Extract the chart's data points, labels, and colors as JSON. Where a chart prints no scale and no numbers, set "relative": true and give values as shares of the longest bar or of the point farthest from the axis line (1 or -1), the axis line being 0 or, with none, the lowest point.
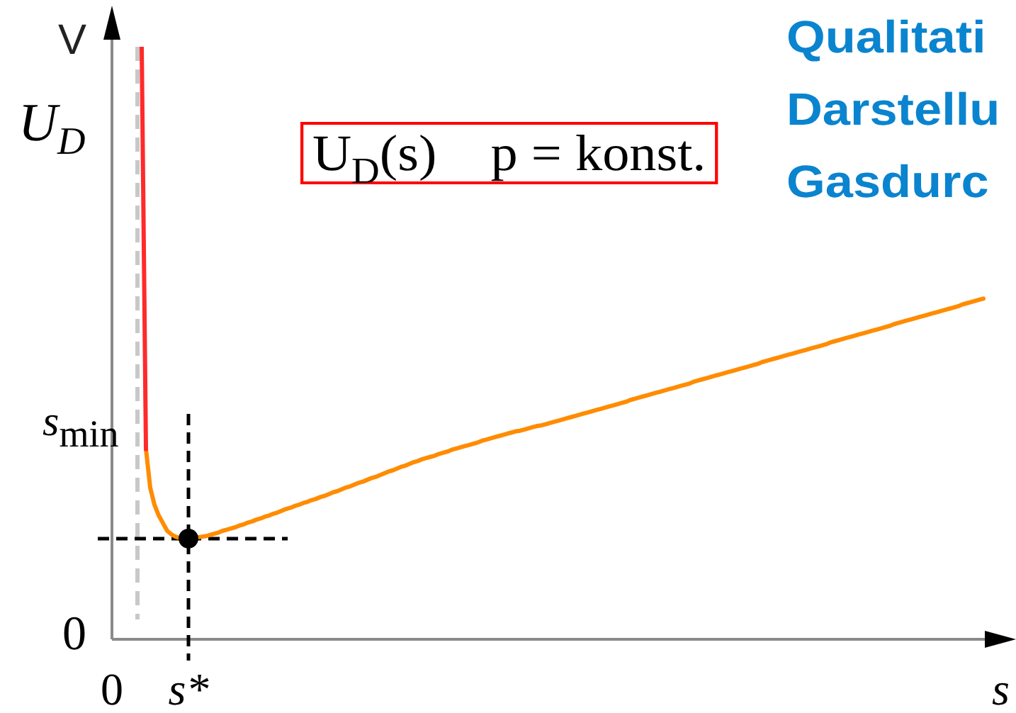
{
  "chart_data": {
    "type": "line",
    "title": "Qualitati\nDarstellu\nGasdurc",
    "xlabel": "s",
    "ylabel": "U$_{D}$",
    "relative": true,
    "categories": [
      "0",
      null,
      null,
      null,
      null,
      null,
      null,
      null,
      null,
      null,
      null,
      null,
      null,
      null,
      null,
      null,
      null,
      null,
      "s*",
      null,
      null,
      null,
      null,
      null,
      null,
      null,
      null,
      null,
      null,
      null,
      null,
      null,
      null,
      null,
      null,
      null,
      null,
      null,
      null,
      null,
      null,
      null,
      null,
      null,
      null,
      null,
      null,
      null,
      null,
      null,
      null,
      null,
      null,
      null,
      null,
      null,
      null,
      null,
      null,
      null,
      null,
      null,
      null,
      null,
      null,
      null,
      null,
      null,
      null,
      null,
      null,
      null,
      null,
      null,
      null,
      null,
      null,
      null,
      null,
      null,
      null,
      null,
      null,
      null,
      null,
      null,
      null,
      null,
      null,
      null,
      null,
      null,
      null,
      null,
      null,
      null,
      null,
      null,
      null,
      null,
      null,
      null,
      null,
      null,
      null,
      null,
      null,
      null,
      null,
      null,
      null,
      null,
      null,
      null,
      null,
      null,
      null,
      null,
      null,
      null,
      null,
      null,
      null,
      null,
      null,
      null,
      null,
      null,
      null,
      null,
      null,
      null,
      null,
      null,
      null,
      null,
      null,
      null,
      null,
      null,
      null,
      null,
      null,
      null,
      null,
      null,
      null,
      null,
      null,
      null,
      null,
      null,
      null,
      null,
      null,
      null,
      null,
      null,
      null,
      null,
      null,
      null,
      null,
      null,
      null,
      null,
      null,
      null,
      null,
      null,
      null,
      null,
      null,
      null,
      null,
      null,
      null,
      null,
      null,
      null,
      null,
      null,
      null,
      null,
      null,
      null,
      null,
      null,
      null,
      null,
      null,
      null,
      null,
      null,
      null,
      null,
      null,
      null,
      null,
      null,
      null,
      null,
      null,
      null,
      null,
      null
    ],
    "series": [
      {
        "color": "#ff2a2a",
        "values": [
          null,
          null,
          null,
          null,
          null,
          null,
          null,
          1,
          0.321,
          null,
          null,
          null,
          null,
          null,
          null,
          null,
          null,
          null,
          null,
          null,
          null,
          null,
          null,
          null,
          null,
          null,
          null,
          null,
          null,
          null,
          null,
          null,
          null,
          null,
          null,
          null,
          null,
          null,
          null,
          null,
          null,
          null,
          null,
          null,
          null,
          null,
          null,
          null,
          null,
          null,
          null,
          null,
          null,
          null,
          null,
          null,
          null,
          null,
          null,
          null,
          null,
          null,
          null,
          null,
          null,
          null,
          null,
          null,
          null,
          null,
          null,
          null,
          null,
          null,
          null,
          null,
          null,
          null,
          null,
          null,
          null,
          null,
          null,
          null,
          null,
          null,
          null,
          null,
          null,
          null,
          null,
          null,
          null,
          null,
          null,
          null,
          null,
          null,
          null,
          null,
          null,
          null,
          null,
          null,
          null,
          null,
          null,
          null,
          null,
          null,
          null,
          null,
          null,
          null,
          null,
          null,
          null,
          null,
          null,
          null,
          null,
          null,
          null,
          null,
          null,
          null,
          null,
          null,
          null,
          null,
          null,
          null,
          null,
          null,
          null,
          null,
          null,
          null,
          null,
          null,
          null,
          null,
          null,
          null,
          null,
          null,
          null,
          null,
          null,
          null,
          null,
          null,
          null,
          null,
          null,
          null,
          null,
          null,
          null,
          null,
          null,
          null,
          null,
          null,
          null,
          null,
          null,
          null,
          null,
          null,
          null,
          null,
          null,
          null,
          null,
          null,
          null,
          null,
          null,
          null,
          null,
          null,
          null,
          null,
          null,
          null,
          null,
          null,
          null,
          null,
          null,
          null,
          null,
          null,
          null,
          null,
          null,
          null,
          null,
          null,
          null,
          null,
          null,
          null,
          null,
          null
        ]
      },
      {
        "color": "#ff8c00",
        "values": [
          null,
          null,
          null,
          null,
          null,
          null,
          null,
          null,
          0.321,
          0.256,
          0.227,
          0.209,
          0.196,
          0.183,
          0.177,
          0.173,
          0.171,
          0.17,
          0.17,
          0.17,
          0.172,
          0.173,
          0.174,
          0.176,
          0.178,
          0.18,
          0.183,
          0.185,
          0.187,
          0.189,
          0.192,
          0.194,
          0.197,
          0.199,
          0.202,
          0.204,
          0.207,
          0.209,
          0.212,
          0.214,
          0.217,
          0.22,
          0.222,
          0.225,
          0.227,
          0.23,
          0.232,
          0.235,
          0.237,
          0.24,
          0.242,
          0.245,
          0.248,
          0.25,
          0.253,
          0.256,
          0.258,
          0.261,
          0.264,
          0.266,
          0.269,
          0.272,
          0.274,
          0.277,
          0.28,
          0.283,
          0.285,
          0.288,
          0.291,
          0.293,
          0.296,
          0.299,
          0.301,
          0.304,
          0.306,
          0.308,
          0.31,
          0.313,
          0.315,
          0.317,
          0.32,
          0.322,
          0.324,
          0.326,
          0.328,
          0.33,
          0.332,
          0.335,
          0.337,
          0.339,
          0.341,
          0.343,
          0.345,
          0.347,
          0.349,
          0.351,
          0.352,
          0.354,
          0.356,
          0.358,
          0.36,
          0.361,
          0.363,
          0.365,
          0.367,
          0.369,
          0.371,
          0.373,
          0.375,
          0.377,
          0.379,
          0.381,
          0.383,
          0.385,
          0.387,
          0.389,
          0.391,
          0.393,
          0.395,
          0.397,
          0.399,
          0.401,
          0.404,
          0.406,
          0.408,
          0.41,
          0.412,
          0.414,
          0.416,
          0.418,
          0.42,
          0.422,
          0.424,
          0.426,
          0.428,
          0.43,
          0.432,
          0.435,
          0.437,
          0.439,
          0.441,
          0.443,
          0.445,
          0.447,
          0.449,
          0.451,
          0.453,
          0.455,
          0.457,
          0.459,
          0.461,
          0.463,
          0.465,
          0.468,
          0.47,
          0.472,
          0.474,
          0.476,
          0.478,
          0.48,
          0.482,
          0.484,
          0.486,
          0.488,
          0.49,
          0.492,
          0.494,
          0.496,
          0.498,
          0.501,
          0.503,
          0.505,
          0.507,
          0.509,
          0.511,
          0.513,
          0.515,
          0.517,
          0.519,
          0.521,
          0.523,
          0.525,
          0.527,
          0.529,
          0.532,
          0.534,
          0.536,
          0.538,
          0.54,
          0.542,
          0.544,
          0.546,
          0.548,
          0.55,
          0.552,
          0.554,
          0.556,
          0.558,
          0.56,
          0.562,
          0.565,
          0.567,
          0.569,
          0.571,
          0.573,
          0.575
        ]
      },
      {
        "type": "scatter",
        "color": "#000000",
        "x": [
          "s*"
        ],
        "values": [
          0.17
        ],
        "marker": "circle"
      }
    ],
    "ref_lines": [
      {
        "axis": "x",
        "value": "s*",
        "color": "#000000",
        "line_style": "dashed"
      },
      {
        "axis": "y",
        "value": 0.17,
        "color": "#000000",
        "line_style": "dashed"
      }
    ],
    "annotations": [
      "V",
      "s$_{min}$",
      "0",
      "U$_{D}$(s)    p = konst."
    ]
  }
}
